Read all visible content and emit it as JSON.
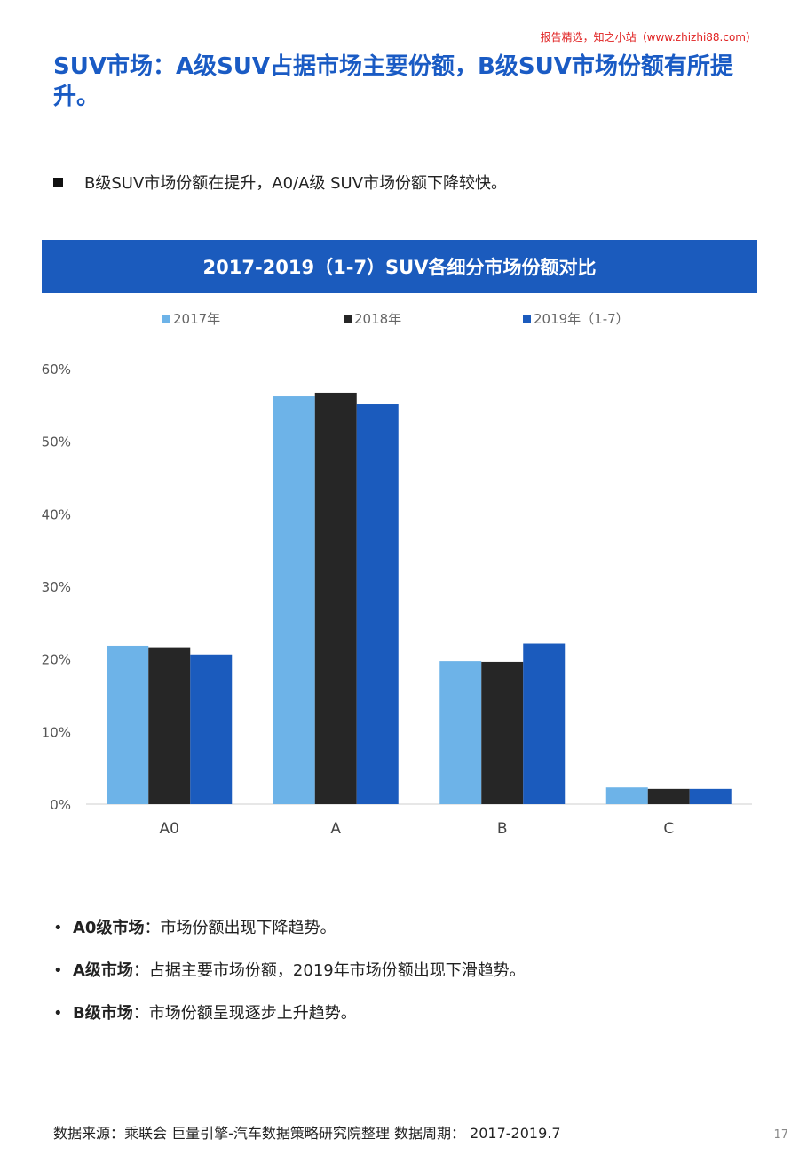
{
  "watermark": "报告精选，知之小站（www.zhizhi88.com）",
  "title": "SUV市场：A级SUV占据市场主要份额，B级SUV市场份额有所提升。",
  "summary": "B级SUV市场份额在提升，A0/A级 SUV市场份额下降较快。",
  "chart_data": {
    "type": "bar",
    "title": "2017-2019（1-7）SUV各细分市场份额对比",
    "categories": [
      "A0",
      "A",
      "B",
      "C"
    ],
    "series": [
      {
        "name": "2017年",
        "color": "#6db3e8",
        "values": [
          21.8,
          56.2,
          19.7,
          2.3
        ]
      },
      {
        "name": "2018年",
        "color": "#262626",
        "values": [
          21.6,
          56.7,
          19.6,
          2.1
        ]
      },
      {
        "name": "2019年（1-7）",
        "color": "#1b5bbd",
        "values": [
          20.6,
          55.1,
          22.1,
          2.1
        ]
      }
    ],
    "ylim": [
      0,
      60
    ],
    "yticks": [
      "0%",
      "10%",
      "20%",
      "30%",
      "40%",
      "50%",
      "60%"
    ],
    "grid": false,
    "legend_position": "top"
  },
  "bullets": [
    {
      "label": "A0级市场",
      "text": "：市场份额出现下降趋势。"
    },
    {
      "label": "A级市场",
      "text": "：占据主要市场份额，2019年市场份额出现下滑趋势。"
    },
    {
      "label": "B级市场",
      "text": "：市场份额呈现逐步上升趋势。"
    }
  ],
  "source": "数据来源：乘联会 巨量引擎-汽车数据策略研究院整理 数据周期： 2017-2019.7",
  "page_number": "17"
}
